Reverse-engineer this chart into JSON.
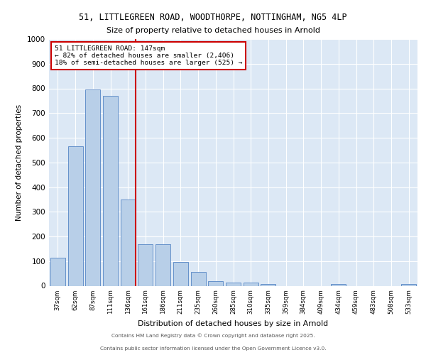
{
  "title_line1": "51, LITTLEGREEN ROAD, WOODTHORPE, NOTTINGHAM, NG5 4LP",
  "title_line2": "Size of property relative to detached houses in Arnold",
  "xlabel": "Distribution of detached houses by size in Arnold",
  "ylabel": "Number of detached properties",
  "categories": [
    "37sqm",
    "62sqm",
    "87sqm",
    "111sqm",
    "136sqm",
    "161sqm",
    "186sqm",
    "211sqm",
    "235sqm",
    "260sqm",
    "285sqm",
    "310sqm",
    "335sqm",
    "359sqm",
    "384sqm",
    "409sqm",
    "434sqm",
    "459sqm",
    "483sqm",
    "508sqm",
    "533sqm"
  ],
  "values": [
    113,
    565,
    795,
    770,
    350,
    167,
    167,
    97,
    55,
    18,
    12,
    12,
    7,
    0,
    0,
    0,
    8,
    0,
    0,
    0,
    8
  ],
  "bar_color": "#b8cfe8",
  "bar_edge_color": "#5585c5",
  "vline_x_index": 4,
  "vline_color": "#cc0000",
  "annotation_box_text": "51 LITTLEGREEN ROAD: 147sqm\n← 82% of detached houses are smaller (2,406)\n18% of semi-detached houses are larger (525) →",
  "ylim": [
    0,
    1000
  ],
  "yticks": [
    0,
    100,
    200,
    300,
    400,
    500,
    600,
    700,
    800,
    900,
    1000
  ],
  "bg_color": "#dce8f5",
  "footer_line1": "Contains HM Land Registry data © Crown copyright and database right 2025.",
  "footer_line2": "Contains public sector information licensed under the Open Government Licence v3.0."
}
